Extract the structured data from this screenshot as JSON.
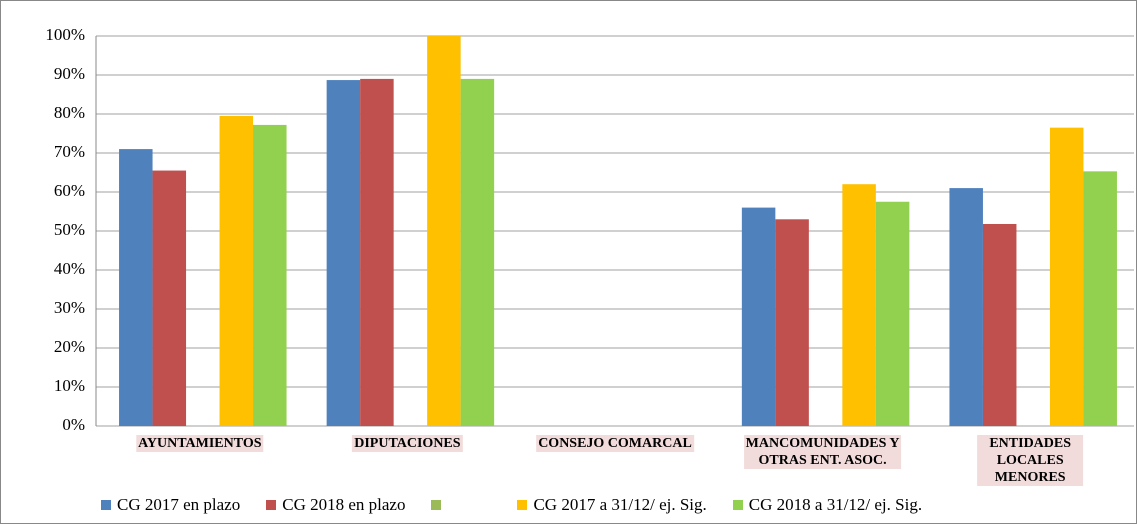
{
  "chart_data": {
    "type": "bar",
    "categories": [
      "AYUNTAMIENTOS",
      "DIPUTACIONES",
      "CONSEJO COMARCAL",
      "MANCOMUNIDADES Y\nOTRAS ENT. ASOC.",
      "ENTIDADES LOCALES\nMENORES"
    ],
    "series": [
      {
        "name": "CG 2017 en plazo",
        "color": "#4f81bd",
        "values": [
          71,
          88.7,
          null,
          56,
          61
        ]
      },
      {
        "name": "CG 2018 en plazo",
        "color": "#c0504d",
        "values": [
          65.5,
          89,
          null,
          53,
          51.8
        ]
      },
      {
        "name": null,
        "color": "#9bbb59",
        "values": [
          null,
          null,
          null,
          null,
          null
        ]
      },
      {
        "name": "CG 2017 a 31/12/ ej. Sig.",
        "color": "#ffc000",
        "values": [
          79.5,
          100,
          null,
          62,
          76.5
        ]
      },
      {
        "name": "CG 2018 a 31/12/ ej. Sig.",
        "color": "#92d050",
        "values": [
          77.2,
          89,
          null,
          57.5,
          65.3
        ]
      }
    ],
    "ylim": [
      0,
      100
    ],
    "yticks": [
      {
        "value": 0,
        "label": "0%"
      },
      {
        "value": 10,
        "label": "10%"
      },
      {
        "value": 20,
        "label": "20%"
      },
      {
        "value": 30,
        "label": "30%"
      },
      {
        "value": 40,
        "label": "40%"
      },
      {
        "value": 50,
        "label": "50%"
      },
      {
        "value": 60,
        "label": "60%"
      },
      {
        "value": 70,
        "label": "70%"
      },
      {
        "value": 80,
        "label": "80%"
      },
      {
        "value": 90,
        "label": "90%"
      },
      {
        "value": 100,
        "label": "100%"
      }
    ],
    "grid": true
  }
}
